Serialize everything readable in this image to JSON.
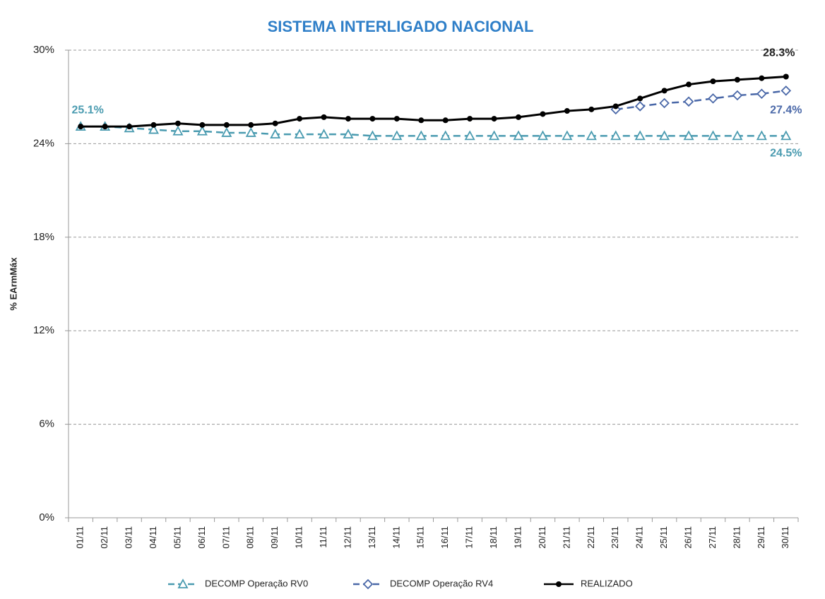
{
  "chart_data": {
    "type": "line",
    "title": "SISTEMA INTERLIGADO NACIONAL",
    "y_label": "% EArmMáx",
    "categories": [
      "01/11",
      "02/11",
      "03/11",
      "04/11",
      "05/11",
      "06/11",
      "07/11",
      "08/11",
      "09/11",
      "10/11",
      "11/11",
      "12/11",
      "13/11",
      "14/11",
      "15/11",
      "16/11",
      "17/11",
      "18/11",
      "19/11",
      "20/11",
      "21/11",
      "22/11",
      "23/11",
      "24/11",
      "25/11",
      "26/11",
      "27/11",
      "28/11",
      "29/11",
      "30/11"
    ],
    "series": [
      {
        "name": "DECOMP Operação RV0",
        "color": "#4a9bb0",
        "marker": "triangle",
        "dash": true,
        "values": [
          25.1,
          25.1,
          25.0,
          24.9,
          24.8,
          24.8,
          24.7,
          24.7,
          24.6,
          24.6,
          24.6,
          24.6,
          24.5,
          24.5,
          24.5,
          24.5,
          24.5,
          24.5,
          24.5,
          24.5,
          24.5,
          24.5,
          24.5,
          24.5,
          24.5,
          24.5,
          24.5,
          24.5,
          24.5,
          24.5
        ],
        "value_labels": [
          "25.1%",
          null,
          null,
          null,
          null,
          null,
          null,
          null,
          null,
          null,
          null,
          null,
          null,
          null,
          null,
          null,
          null,
          null,
          null,
          null,
          null,
          null,
          null,
          null,
          null,
          null,
          null,
          null,
          null,
          "24.5%"
        ]
      },
      {
        "name": "DECOMP Operação RV4",
        "color": "#4a68a8",
        "marker": "diamond",
        "dash": true,
        "values": [
          null,
          null,
          null,
          null,
          null,
          null,
          null,
          null,
          null,
          null,
          null,
          null,
          null,
          null,
          null,
          null,
          null,
          null,
          null,
          null,
          null,
          null,
          26.2,
          26.4,
          26.6,
          26.7,
          26.9,
          27.1,
          27.2,
          27.4
        ],
        "value_labels": [
          null,
          null,
          null,
          null,
          null,
          null,
          null,
          null,
          null,
          null,
          null,
          null,
          null,
          null,
          null,
          null,
          null,
          null,
          null,
          null,
          null,
          null,
          null,
          null,
          null,
          null,
          null,
          null,
          null,
          "27.4%"
        ]
      },
      {
        "name": "REALIZADO",
        "color": "#000000",
        "marker": "circle",
        "dash": false,
        "values": [
          25.1,
          25.1,
          25.1,
          25.2,
          25.3,
          25.2,
          25.2,
          25.2,
          25.3,
          25.6,
          25.7,
          25.6,
          25.6,
          25.6,
          25.5,
          25.5,
          25.6,
          25.6,
          25.7,
          25.9,
          26.1,
          26.2,
          26.4,
          26.9,
          27.4,
          27.8,
          28.0,
          28.1,
          28.2,
          28.3
        ],
        "value_labels": [
          null,
          null,
          null,
          null,
          null,
          null,
          null,
          null,
          null,
          null,
          null,
          null,
          null,
          null,
          null,
          null,
          null,
          null,
          null,
          null,
          null,
          null,
          null,
          null,
          null,
          null,
          null,
          null,
          null,
          "28.3%"
        ]
      }
    ],
    "ylim": [
      0,
      30
    ],
    "yticks": [
      {
        "value": 0,
        "label": "0%"
      },
      {
        "value": 6,
        "label": "6%"
      },
      {
        "value": 12,
        "label": "12%"
      },
      {
        "value": 18,
        "label": "18%"
      },
      {
        "value": 24,
        "label": "24%"
      },
      {
        "value": 30,
        "label": "30%"
      }
    ],
    "grid": true,
    "legend": "bottom"
  }
}
